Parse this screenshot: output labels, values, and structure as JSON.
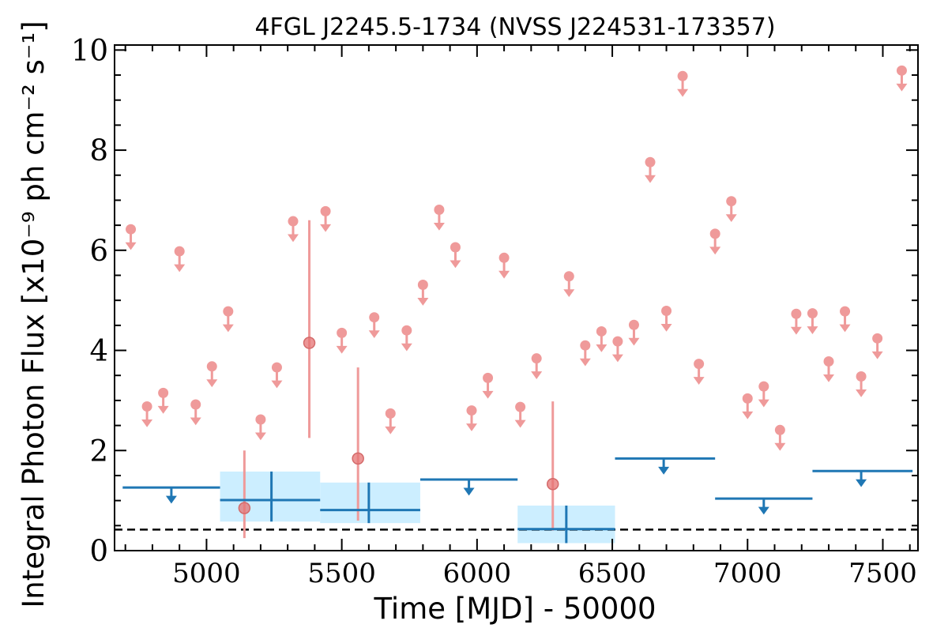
{
  "chart_data": {
    "type": "scatter",
    "title": "4FGL J2245.5-1734 (NVSS J224531-173357)",
    "xlabel": "Time [MJD] - 50000",
    "ylabel": "Integral Photon Flux [x10⁻⁹ ph cm⁻² s⁻¹]",
    "xlim": [
      4660,
      7630
    ],
    "ylim": [
      0,
      10.1
    ],
    "xticks": [
      5000,
      5500,
      6000,
      6500,
      7000,
      7500
    ],
    "yticks": [
      0,
      2,
      4,
      6,
      8,
      10
    ],
    "grid": false,
    "reference_level": 0.42,
    "colors": {
      "short_bins": "#ef9a9a",
      "short_detection": "#e57373",
      "long_bins": "#1f77b4",
      "long_band": "#cceeff",
      "reference": "#000000"
    },
    "short_bin_upper_limits": [
      {
        "x": 4720,
        "y": 6.42
      },
      {
        "x": 4780,
        "y": 2.88
      },
      {
        "x": 4840,
        "y": 3.15
      },
      {
        "x": 4900,
        "y": 5.98
      },
      {
        "x": 4960,
        "y": 2.92
      },
      {
        "x": 5020,
        "y": 3.68
      },
      {
        "x": 5080,
        "y": 4.78
      },
      {
        "x": 5200,
        "y": 2.62
      },
      {
        "x": 5260,
        "y": 3.66
      },
      {
        "x": 5320,
        "y": 6.58
      },
      {
        "x": 5440,
        "y": 6.78
      },
      {
        "x": 5500,
        "y": 4.35
      },
      {
        "x": 5620,
        "y": 4.66
      },
      {
        "x": 5680,
        "y": 2.74
      },
      {
        "x": 5740,
        "y": 4.4
      },
      {
        "x": 5800,
        "y": 5.31
      },
      {
        "x": 5860,
        "y": 6.81
      },
      {
        "x": 5920,
        "y": 6.06
      },
      {
        "x": 5980,
        "y": 2.8
      },
      {
        "x": 6040,
        "y": 3.45
      },
      {
        "x": 6100,
        "y": 5.85
      },
      {
        "x": 6160,
        "y": 2.87
      },
      {
        "x": 6220,
        "y": 3.84
      },
      {
        "x": 6340,
        "y": 5.48
      },
      {
        "x": 6400,
        "y": 4.1
      },
      {
        "x": 6460,
        "y": 4.38
      },
      {
        "x": 6520,
        "y": 4.18
      },
      {
        "x": 6580,
        "y": 4.51
      },
      {
        "x": 6640,
        "y": 7.76
      },
      {
        "x": 6700,
        "y": 4.79
      },
      {
        "x": 6760,
        "y": 9.48
      },
      {
        "x": 6820,
        "y": 3.73
      },
      {
        "x": 6880,
        "y": 6.33
      },
      {
        "x": 6940,
        "y": 6.98
      },
      {
        "x": 7000,
        "y": 3.04
      },
      {
        "x": 7060,
        "y": 3.28
      },
      {
        "x": 7120,
        "y": 2.41
      },
      {
        "x": 7180,
        "y": 4.73
      },
      {
        "x": 7240,
        "y": 4.74
      },
      {
        "x": 7300,
        "y": 3.78
      },
      {
        "x": 7360,
        "y": 4.78
      },
      {
        "x": 7420,
        "y": 3.48
      },
      {
        "x": 7480,
        "y": 4.24
      },
      {
        "x": 7570,
        "y": 9.59
      }
    ],
    "short_bin_detections": [
      {
        "x": 5140,
        "y": 0.85,
        "ylo": 0.25,
        "yhi": 2.0
      },
      {
        "x": 5380,
        "y": 4.15,
        "ylo": 2.25,
        "yhi": 6.6
      },
      {
        "x": 5560,
        "y": 1.84,
        "ylo": 0.6,
        "yhi": 3.66
      },
      {
        "x": 6280,
        "y": 1.33,
        "ylo": 0.4,
        "yhi": 2.98
      }
    ],
    "long_bin_upper_limits": [
      {
        "x0": 4690,
        "x1": 5050,
        "y": 1.26,
        "xc": 4870
      },
      {
        "x0": 5790,
        "x1": 6150,
        "y": 1.42,
        "xc": 5970
      },
      {
        "x0": 6510,
        "x1": 6880,
        "y": 1.84,
        "xc": 6690
      },
      {
        "x0": 6880,
        "x1": 7240,
        "y": 1.04,
        "xc": 7060
      },
      {
        "x0": 7240,
        "x1": 7610,
        "y": 1.59,
        "xc": 7420
      }
    ],
    "long_bin_detections": [
      {
        "x0": 5050,
        "x1": 5420,
        "xc": 5240,
        "y": 1.01,
        "ylo": 0.58,
        "yhi": 1.58
      },
      {
        "x0": 5420,
        "x1": 5790,
        "xc": 5600,
        "y": 0.81,
        "ylo": 0.55,
        "yhi": 1.36
      },
      {
        "x0": 6150,
        "x1": 6510,
        "xc": 6330,
        "y": 0.43,
        "ylo": 0.15,
        "yhi": 0.9
      }
    ]
  }
}
